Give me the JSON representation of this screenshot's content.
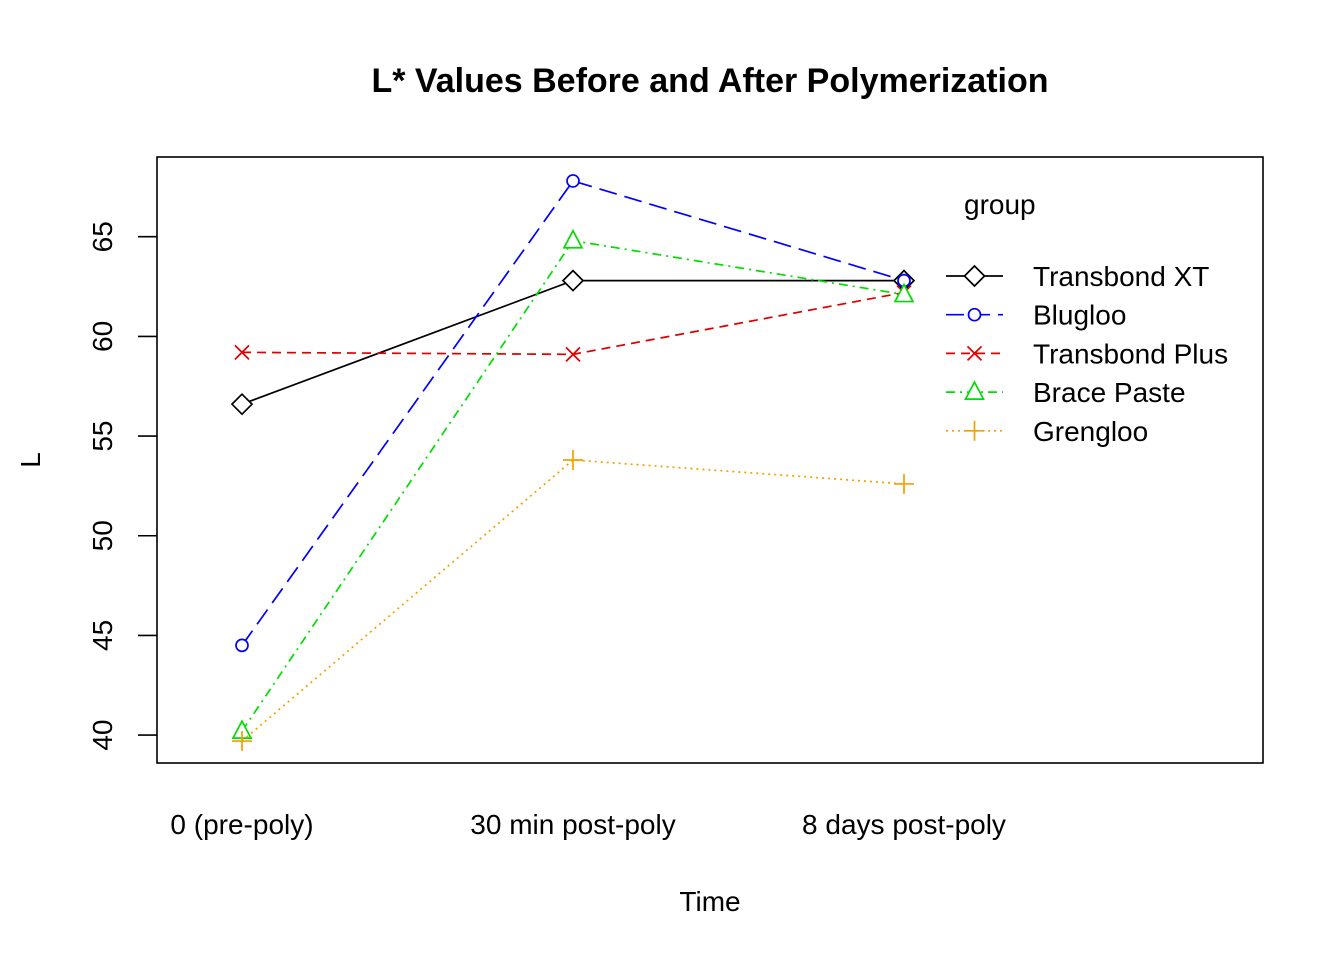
{
  "chart_data": {
    "type": "line",
    "title": "L* Values Before and After Polymerization",
    "xlabel": "Time",
    "ylabel": "L",
    "categories": [
      "0 (pre-poly)",
      "30 min post-poly",
      "8 days post-poly"
    ],
    "yticks": [
      40,
      45,
      50,
      55,
      60,
      65
    ],
    "ylim": [
      38.6,
      69
    ],
    "grid": false,
    "legend_title": "group",
    "legend_position": "top-right",
    "series": [
      {
        "name": "Transbond XT",
        "values": [
          56.6,
          62.8,
          62.8
        ],
        "color": "#000000",
        "marker": "diamond",
        "dash": ""
      },
      {
        "name": "Blugloo",
        "values": [
          44.5,
          67.8,
          62.8
        ],
        "color": "#0000FF",
        "marker": "circle",
        "dash": "18 8"
      },
      {
        "name": "Transbond Plus",
        "values": [
          59.2,
          59.1,
          62.2
        ],
        "color": "#DF0000",
        "marker": "cross",
        "dash": "9 6"
      },
      {
        "name": "Brace Paste",
        "values": [
          40.2,
          64.8,
          62.1
        ],
        "color": "#00DD00",
        "marker": "triangle",
        "dash": "9 5 2 5"
      },
      {
        "name": "Grengloo",
        "values": [
          39.7,
          53.8,
          52.6
        ],
        "color": "#F5A000",
        "marker": "plus",
        "dash": "2 4"
      }
    ]
  }
}
